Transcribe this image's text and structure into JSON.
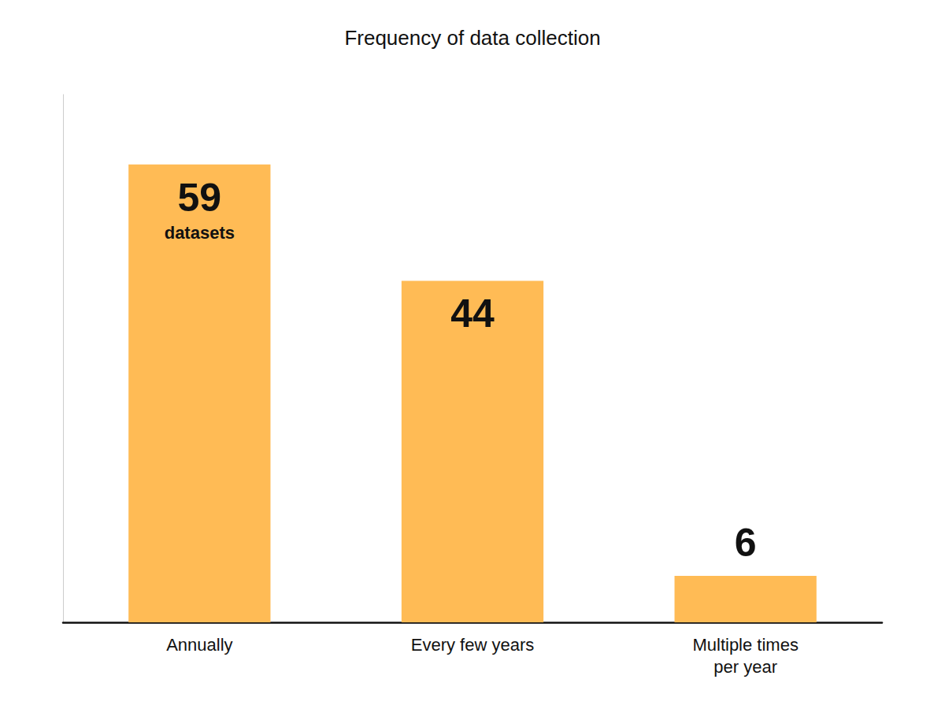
{
  "chart_data": {
    "type": "bar",
    "title": "Frequency of data collection",
    "categories": [
      "Annually",
      "Every few years",
      "Multiple times\nper year"
    ],
    "values": [
      59,
      44,
      6
    ],
    "color": "#FFBB55",
    "ylim": [
      0,
      68
    ],
    "grid": false,
    "tick_labels": "x",
    "data_labels": true,
    "annotations": [
      {
        "category": "Annually",
        "text": "datasets"
      }
    ]
  }
}
